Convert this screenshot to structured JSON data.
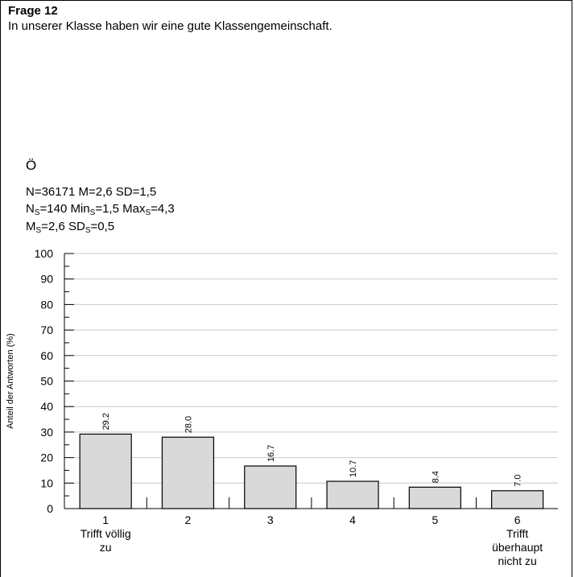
{
  "question": {
    "title": "Frage 12",
    "text": "In unserer Klasse haben wir eine gute Klassengemeinschaft."
  },
  "group_label": "Ö",
  "stats": {
    "line1": "N=36171 M=2,6 SD=1,5",
    "n_s": "140",
    "min_s": "1,5",
    "max_s": "4,3",
    "m_s": "2,6",
    "sd_s": "0,5",
    "sub": "S"
  },
  "chart_data": {
    "type": "bar",
    "categories": [
      "1",
      "2",
      "3",
      "4",
      "5",
      "6"
    ],
    "category_sublabels": [
      [
        "Trifft völlig",
        "zu"
      ],
      [],
      [],
      [],
      [],
      [
        "Trifft",
        "überhaupt",
        "nicht zu"
      ]
    ],
    "values": [
      29.2,
      28.0,
      16.7,
      10.7,
      8.4,
      7.0
    ],
    "data_labels": [
      "29.2",
      "28.0",
      "16.7",
      "10.7",
      "8.4",
      "7.0"
    ],
    "ylabel": "Anteil der Antworten (%)",
    "ylim": [
      0,
      100
    ],
    "yticks": [
      0,
      10,
      20,
      30,
      40,
      50,
      60,
      70,
      80,
      90,
      100
    ],
    "grid": true,
    "bar_color": "#d9d9d9"
  }
}
